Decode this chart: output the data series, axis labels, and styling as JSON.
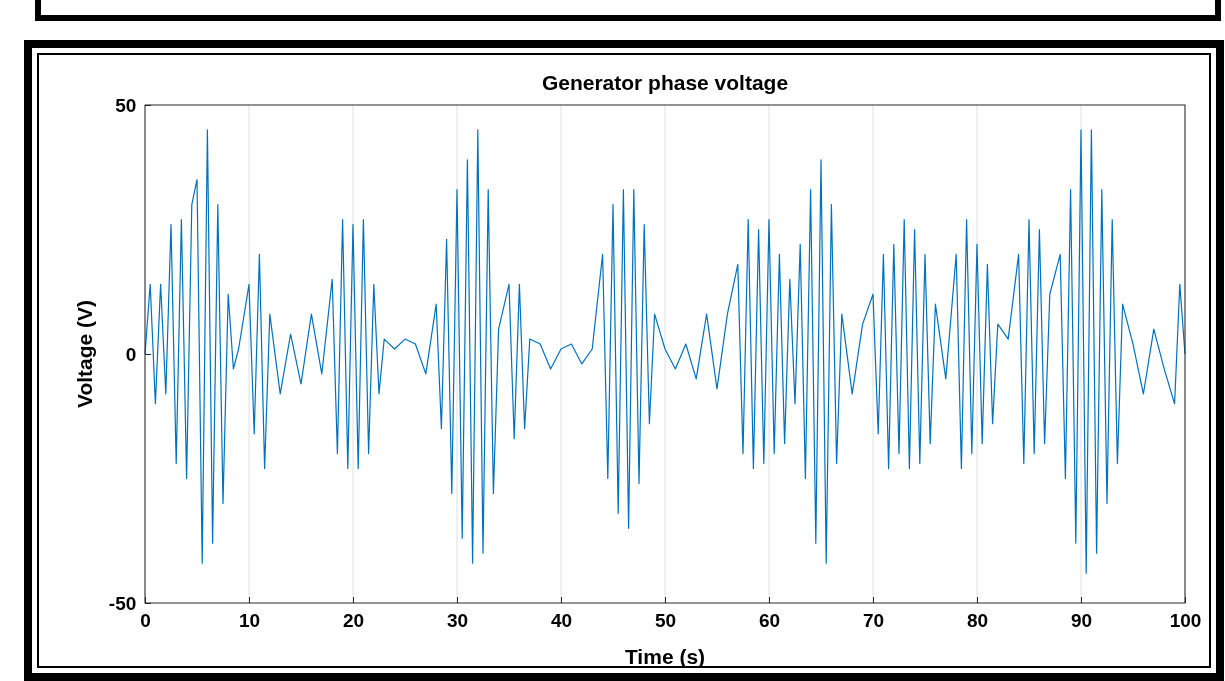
{
  "chart_data": {
    "type": "line",
    "title": "Generator phase voltage",
    "xlabel": "Time (s)",
    "ylabel": "Voltage (V)",
    "xlim": [
      0,
      100
    ],
    "xticks": [
      0,
      10,
      20,
      30,
      40,
      50,
      60,
      70,
      80,
      90,
      100
    ],
    "ylim": [
      -50,
      50
    ],
    "yticks": [
      -50,
      0,
      50
    ],
    "grid": "x",
    "line_style": "solid",
    "series": [
      {
        "color": "#0072bd",
        "x": [
          0,
          0.5,
          1,
          1.5,
          2,
          2.5,
          3,
          3.5,
          4,
          4.5,
          5,
          5.5,
          6,
          6.5,
          7,
          7.5,
          8,
          8.5,
          9,
          10,
          10.5,
          11,
          11.5,
          12,
          13,
          14,
          15,
          16,
          17,
          18,
          18.5,
          19,
          19.5,
          20,
          20.5,
          21,
          21.5,
          22,
          22.5,
          23,
          24,
          25,
          26,
          27,
          28,
          28.5,
          29,
          29.5,
          30,
          30.5,
          31,
          31.5,
          32,
          32.5,
          33,
          33.5,
          34,
          35,
          35.5,
          36,
          36.5,
          37,
          38,
          39,
          40,
          41,
          42,
          43,
          44,
          44.5,
          45,
          45.5,
          46,
          46.5,
          47,
          47.5,
          48,
          48.5,
          49,
          50,
          51,
          52,
          53,
          54,
          55,
          56,
          57,
          57.5,
          58,
          58.5,
          59,
          59.5,
          60,
          60.5,
          61,
          61.5,
          62,
          62.5,
          63,
          63.5,
          64,
          64.5,
          65,
          65.5,
          66,
          66.5,
          67,
          68,
          69,
          70,
          70.5,
          71,
          71.5,
          72,
          72.5,
          73,
          73.5,
          74,
          74.5,
          75,
          75.5,
          76,
          77,
          78,
          78.5,
          79,
          79.5,
          80,
          80.5,
          81,
          81.5,
          82,
          83,
          84,
          84.5,
          85,
          85.5,
          86,
          86.5,
          87,
          88,
          88.5,
          89,
          89.5,
          90,
          90.5,
          91,
          91.5,
          92,
          92.5,
          93,
          93.5,
          94,
          95,
          96,
          97,
          98,
          99,
          99.5,
          100
        ],
        "values": [
          0,
          14,
          -10,
          14,
          -8,
          26,
          -22,
          27,
          -25,
          30,
          35,
          -42,
          45,
          -38,
          30,
          -30,
          12,
          -3,
          1,
          14,
          -16,
          20,
          -23,
          8,
          -8,
          4,
          -6,
          8,
          -4,
          15,
          -20,
          27,
          -23,
          26,
          -23,
          27,
          -20,
          14,
          -8,
          3,
          1,
          3,
          2,
          -4,
          10,
          -15,
          23,
          -28,
          33,
          -37,
          39,
          -42,
          45,
          -40,
          33,
          -28,
          5,
          14,
          -17,
          14,
          -15,
          3,
          2,
          -3,
          1,
          2,
          -2,
          1,
          20,
          -25,
          30,
          -32,
          33,
          -35,
          33,
          -26,
          26,
          -14,
          8,
          1,
          -3,
          2,
          -5,
          8,
          -7,
          8,
          18,
          -20,
          27,
          -23,
          25,
          -22,
          27,
          -20,
          20,
          -18,
          15,
          -10,
          22,
          -25,
          33,
          -38,
          39,
          -42,
          30,
          -22,
          8,
          -8,
          6,
          12,
          -16,
          20,
          -23,
          22,
          -20,
          27,
          -23,
          25,
          -22,
          20,
          -18,
          10,
          -5,
          20,
          -23,
          27,
          -20,
          22,
          -18,
          18,
          -14,
          6,
          3,
          20,
          -22,
          27,
          -20,
          25,
          -18,
          12,
          20,
          -25,
          33,
          -38,
          45,
          -44,
          45,
          -40,
          33,
          -30,
          27,
          -22,
          10,
          2,
          -8,
          5,
          -3,
          -10,
          14,
          0
        ]
      }
    ]
  }
}
